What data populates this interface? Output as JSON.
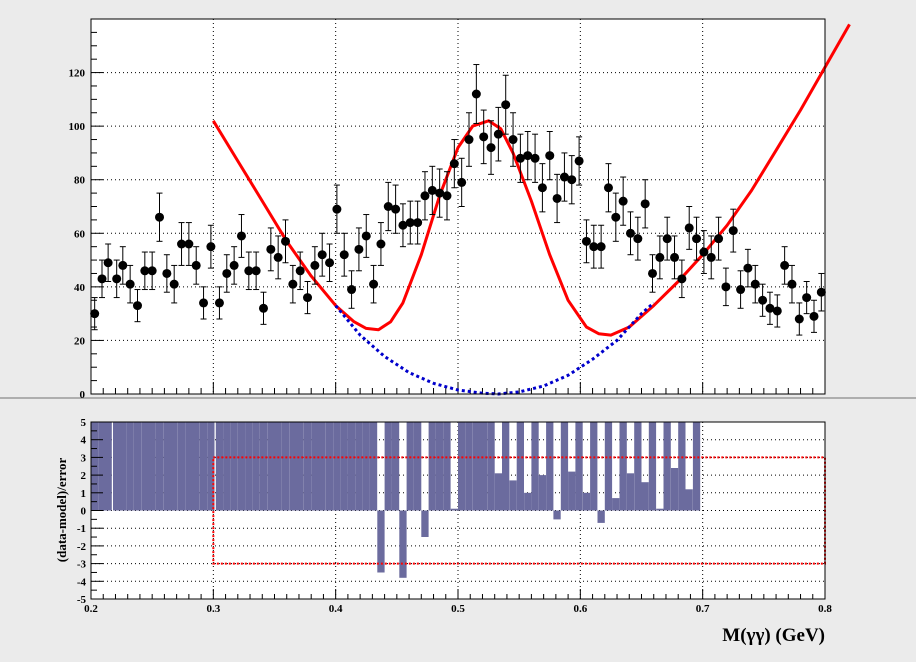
{
  "chart_data": [
    {
      "type": "scatter",
      "title": "",
      "xlabel": "",
      "ylabel": "",
      "xlim": [
        0.2,
        0.8
      ],
      "ylim": [
        0,
        140
      ],
      "grid": true,
      "yticks": [
        0,
        20,
        40,
        60,
        80,
        100,
        120
      ],
      "series": [
        {
          "kind": "points-with-errors",
          "color": "#000000",
          "points": [
            [
              0.203,
              30,
              6
            ],
            [
              0.209,
              43,
              7
            ],
            [
              0.214,
              49,
              7
            ],
            [
              0.221,
              43,
              7
            ],
            [
              0.226,
              48,
              7
            ],
            [
              0.232,
              41,
              7
            ],
            [
              0.238,
              33,
              6
            ],
            [
              0.244,
              46,
              7
            ],
            [
              0.25,
              46,
              7
            ],
            [
              0.256,
              66,
              9
            ],
            [
              0.262,
              45,
              7
            ],
            [
              0.268,
              41,
              7
            ],
            [
              0.274,
              56,
              8
            ],
            [
              0.28,
              56,
              8
            ],
            [
              0.286,
              48,
              7
            ],
            [
              0.292,
              34,
              6
            ],
            [
              0.298,
              55,
              8
            ],
            [
              0.305,
              34,
              6
            ],
            [
              0.311,
              45,
              7
            ],
            [
              0.317,
              48,
              7
            ],
            [
              0.323,
              59,
              8
            ],
            [
              0.329,
              46,
              7
            ],
            [
              0.335,
              46,
              7
            ],
            [
              0.341,
              32,
              6
            ],
            [
              0.347,
              54,
              8
            ],
            [
              0.353,
              51,
              8
            ],
            [
              0.359,
              57,
              8
            ],
            [
              0.365,
              41,
              7
            ],
            [
              0.371,
              46,
              7
            ],
            [
              0.377,
              36,
              6
            ],
            [
              0.383,
              48,
              7
            ],
            [
              0.389,
              52,
              8
            ],
            [
              0.395,
              49,
              7
            ],
            [
              0.401,
              69,
              9
            ],
            [
              0.407,
              52,
              8
            ],
            [
              0.413,
              39,
              7
            ],
            [
              0.419,
              54,
              8
            ],
            [
              0.425,
              59,
              8
            ],
            [
              0.431,
              41,
              7
            ],
            [
              0.437,
              56,
              8
            ],
            [
              0.443,
              70,
              9
            ],
            [
              0.449,
              69,
              9
            ],
            [
              0.455,
              63,
              8
            ],
            [
              0.461,
              64,
              8
            ],
            [
              0.467,
              64,
              8
            ],
            [
              0.473,
              74,
              9
            ],
            [
              0.479,
              76,
              9
            ],
            [
              0.485,
              75,
              9
            ],
            [
              0.491,
              74,
              9
            ],
            [
              0.497,
              86,
              9
            ],
            [
              0.503,
              79,
              9
            ],
            [
              0.509,
              95,
              10
            ],
            [
              0.515,
              112,
              11
            ],
            [
              0.521,
              96,
              10
            ],
            [
              0.527,
              92,
              10
            ],
            [
              0.533,
              97,
              10
            ],
            [
              0.539,
              108,
              11
            ],
            [
              0.545,
              95,
              10
            ],
            [
              0.551,
              88,
              9
            ],
            [
              0.557,
              89,
              9
            ],
            [
              0.563,
              88,
              9
            ],
            [
              0.569,
              77,
              9
            ],
            [
              0.575,
              89,
              9
            ],
            [
              0.581,
              73,
              9
            ],
            [
              0.587,
              81,
              9
            ],
            [
              0.593,
              80,
              9
            ],
            [
              0.599,
              87,
              9
            ],
            [
              0.605,
              57,
              8
            ],
            [
              0.611,
              55,
              8
            ],
            [
              0.617,
              55,
              8
            ],
            [
              0.623,
              77,
              9
            ],
            [
              0.629,
              66,
              9
            ],
            [
              0.635,
              72,
              9
            ],
            [
              0.641,
              60,
              8
            ],
            [
              0.647,
              58,
              8
            ],
            [
              0.653,
              71,
              9
            ],
            [
              0.659,
              45,
              7
            ],
            [
              0.665,
              51,
              8
            ],
            [
              0.671,
              58,
              8
            ],
            [
              0.677,
              51,
              8
            ],
            [
              0.683,
              43,
              7
            ],
            [
              0.689,
              62,
              8
            ],
            [
              0.695,
              58,
              8
            ],
            [
              0.701,
              53,
              8
            ],
            [
              0.707,
              51,
              8
            ],
            [
              0.713,
              58,
              8
            ],
            [
              0.719,
              40,
              7
            ],
            [
              0.725,
              61,
              8
            ],
            [
              0.731,
              39,
              7
            ],
            [
              0.737,
              47,
              7
            ],
            [
              0.743,
              41,
              7
            ],
            [
              0.749,
              35,
              6
            ],
            [
              0.755,
              32,
              6
            ],
            [
              0.761,
              31,
              6
            ],
            [
              0.767,
              48,
              7
            ],
            [
              0.773,
              41,
              7
            ],
            [
              0.779,
              28,
              6
            ],
            [
              0.785,
              36,
              6
            ],
            [
              0.791,
              29,
              6
            ],
            [
              0.797,
              38,
              7
            ]
          ]
        },
        {
          "kind": "curve",
          "color": "#ff0000",
          "points": [
            [
              0.3,
              102
            ],
            [
              0.32,
              87
            ],
            [
              0.34,
              72
            ],
            [
              0.36,
              57
            ],
            [
              0.38,
              44
            ],
            [
              0.4,
              33
            ],
            [
              0.415,
              27
            ],
            [
              0.425,
              24.5
            ],
            [
              0.435,
              24
            ],
            [
              0.445,
              27
            ],
            [
              0.455,
              34
            ],
            [
              0.47,
              52
            ],
            [
              0.485,
              74
            ],
            [
              0.5,
              92
            ],
            [
              0.512,
              100
            ],
            [
              0.525,
              102
            ],
            [
              0.535,
              99
            ],
            [
              0.545,
              90
            ],
            [
              0.56,
              72
            ],
            [
              0.575,
              52
            ],
            [
              0.59,
              35
            ],
            [
              0.605,
              25
            ],
            [
              0.615,
              22.5
            ],
            [
              0.625,
              22
            ],
            [
              0.64,
              25
            ],
            [
              0.66,
              33
            ],
            [
              0.68,
              42
            ],
            [
              0.7,
              52
            ],
            [
              0.72,
              63
            ],
            [
              0.74,
              76
            ],
            [
              0.76,
              91
            ],
            [
              0.78,
              106
            ],
            [
              0.8,
              122
            ],
            [
              0.82,
              138
            ]
          ]
        },
        {
          "kind": "dashed-curve",
          "color": "#0000cc",
          "points": [
            [
              0.4,
              33
            ],
            [
              0.42,
              22
            ],
            [
              0.44,
              14
            ],
            [
              0.46,
              8
            ],
            [
              0.48,
              4
            ],
            [
              0.5,
              1.5
            ],
            [
              0.52,
              0.3
            ],
            [
              0.533,
              0
            ],
            [
              0.55,
              0.8
            ],
            [
              0.57,
              3
            ],
            [
              0.59,
              7
            ],
            [
              0.61,
              13
            ],
            [
              0.63,
              20
            ],
            [
              0.65,
              30
            ],
            [
              0.66,
              34
            ]
          ]
        }
      ]
    },
    {
      "type": "bar",
      "title": "",
      "xlabel": "M(γγ) (GeV)",
      "ylabel": "(data-model)/error",
      "xlim": [
        0.2,
        0.8
      ],
      "ylim": [
        -5,
        5
      ],
      "xticks": [
        "0.2",
        "0.3",
        "0.4",
        "0.5",
        "0.6",
        "0.7",
        "0.8"
      ],
      "yticks": [
        -5,
        -4,
        -3,
        -2,
        -1,
        0,
        1,
        2,
        3,
        4,
        5
      ],
      "bar_color": "#6b6b9e",
      "box": {
        "x0": 0.3,
        "x1": 0.8,
        "y0": -3,
        "y1": 3,
        "color": "#ff0000"
      },
      "bars": [
        [
          0.203,
          5
        ],
        [
          0.209,
          5
        ],
        [
          0.214,
          5
        ],
        [
          0.221,
          5
        ],
        [
          0.226,
          5
        ],
        [
          0.232,
          5
        ],
        [
          0.238,
          5
        ],
        [
          0.244,
          5
        ],
        [
          0.25,
          5
        ],
        [
          0.256,
          5
        ],
        [
          0.262,
          5
        ],
        [
          0.268,
          5
        ],
        [
          0.274,
          5
        ],
        [
          0.28,
          5
        ],
        [
          0.286,
          5
        ],
        [
          0.292,
          5
        ],
        [
          0.298,
          5
        ],
        [
          0.305,
          5
        ],
        [
          0.311,
          5
        ],
        [
          0.317,
          5
        ],
        [
          0.323,
          5
        ],
        [
          0.329,
          5
        ],
        [
          0.335,
          5
        ],
        [
          0.341,
          5
        ],
        [
          0.347,
          5
        ],
        [
          0.353,
          5
        ],
        [
          0.359,
          5
        ],
        [
          0.365,
          5
        ],
        [
          0.371,
          5
        ],
        [
          0.377,
          5
        ],
        [
          0.383,
          5
        ],
        [
          0.389,
          5
        ],
        [
          0.395,
          5
        ],
        [
          0.401,
          5
        ],
        [
          0.407,
          5
        ],
        [
          0.413,
          5
        ],
        [
          0.419,
          5
        ],
        [
          0.425,
          5
        ],
        [
          0.431,
          5
        ],
        [
          0.437,
          -3.5
        ],
        [
          0.443,
          5
        ],
        [
          0.449,
          5
        ],
        [
          0.455,
          -3.8
        ],
        [
          0.461,
          5
        ],
        [
          0.467,
          5
        ],
        [
          0.473,
          -1.5
        ],
        [
          0.479,
          5
        ],
        [
          0.485,
          5
        ],
        [
          0.491,
          5
        ],
        [
          0.497,
          0.1
        ],
        [
          0.503,
          5
        ],
        [
          0.509,
          5
        ],
        [
          0.515,
          5
        ],
        [
          0.521,
          5
        ],
        [
          0.527,
          5
        ],
        [
          0.533,
          2.1
        ],
        [
          0.539,
          5
        ],
        [
          0.545,
          1.7
        ],
        [
          0.551,
          5
        ],
        [
          0.557,
          1
        ],
        [
          0.563,
          5
        ],
        [
          0.569,
          2
        ],
        [
          0.575,
          5
        ],
        [
          0.581,
          -0.5
        ],
        [
          0.587,
          5
        ],
        [
          0.593,
          2.2
        ],
        [
          0.599,
          5
        ],
        [
          0.605,
          1
        ],
        [
          0.611,
          5
        ],
        [
          0.617,
          -0.7
        ],
        [
          0.623,
          5
        ],
        [
          0.629,
          0.7
        ],
        [
          0.635,
          5
        ],
        [
          0.641,
          2.1
        ],
        [
          0.647,
          5
        ],
        [
          0.653,
          1.6
        ],
        [
          0.659,
          5
        ],
        [
          0.665,
          0.1
        ],
        [
          0.671,
          5
        ],
        [
          0.677,
          2.4
        ],
        [
          0.683,
          5
        ],
        [
          0.689,
          1.2
        ],
        [
          0.695,
          5
        ]
      ]
    }
  ]
}
